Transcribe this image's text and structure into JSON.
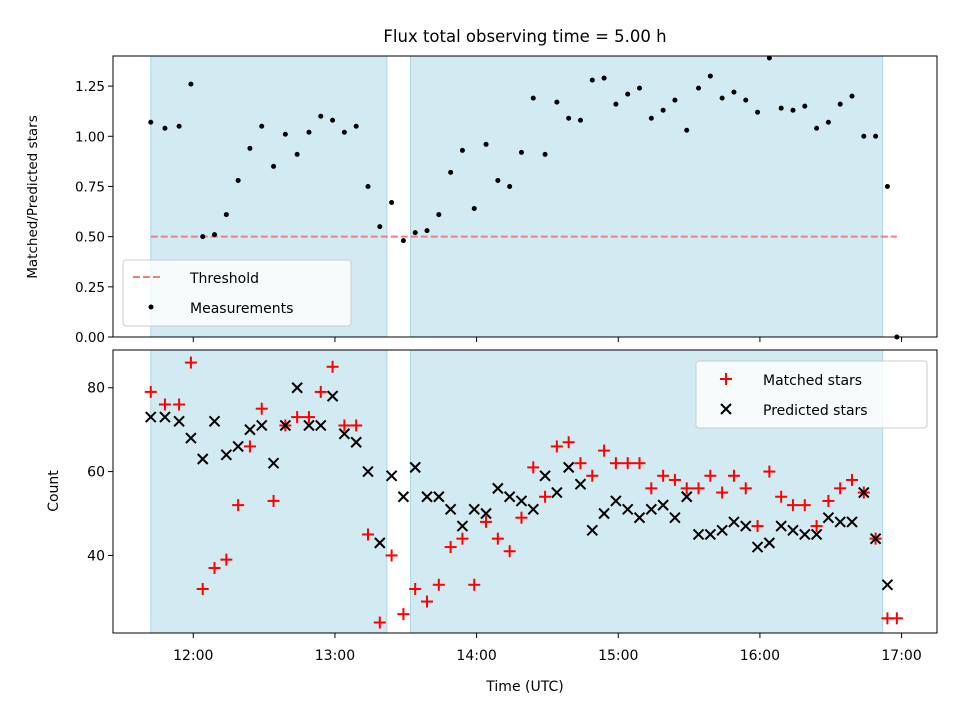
{
  "chart_data": [
    {
      "type": "scatter",
      "title": "Flux total observing time = 5.00 h",
      "xlabel": "",
      "ylabel": "Matched/Predicted stars",
      "xlim": [
        "11:26",
        "17:15"
      ],
      "ylim": [
        0,
        1.4
      ],
      "yticks": [
        0.0,
        0.25,
        0.5,
        0.75,
        1.0,
        1.25
      ],
      "ytick_labels": [
        "0.00",
        "0.25",
        "0.50",
        "0.75",
        "1.00",
        "1.25"
      ],
      "shaded_spans": [
        [
          "11:42",
          "13:22"
        ],
        [
          "13:32",
          "16:52"
        ]
      ],
      "threshold": {
        "name": "Threshold",
        "value": 0.5,
        "from": "11:42",
        "to": "16:58",
        "color": "#f08080"
      },
      "legend": {
        "placement": "lower-left",
        "entries": [
          "Threshold",
          "Measurements"
        ]
      },
      "series": [
        {
          "name": "Measurements",
          "color": "#000000",
          "points": [
            [
              "11:42",
              1.07
            ],
            [
              "11:48",
              1.04
            ],
            [
              "11:54",
              1.05
            ],
            [
              "11:59",
              1.26
            ],
            [
              "12:04",
              0.5
            ],
            [
              "12:09",
              0.51
            ],
            [
              "12:14",
              0.61
            ],
            [
              "12:19",
              0.78
            ],
            [
              "12:24",
              0.94
            ],
            [
              "12:29",
              1.05
            ],
            [
              "12:34",
              0.85
            ],
            [
              "12:39",
              1.01
            ],
            [
              "12:44",
              0.91
            ],
            [
              "12:49",
              1.02
            ],
            [
              "12:54",
              1.1
            ],
            [
              "12:59",
              1.08
            ],
            [
              "13:04",
              1.02
            ],
            [
              "13:09",
              1.05
            ],
            [
              "13:14",
              0.75
            ],
            [
              "13:19",
              0.55
            ],
            [
              "13:24",
              0.67
            ],
            [
              "13:29",
              0.48
            ],
            [
              "13:34",
              0.52
            ],
            [
              "13:39",
              0.53
            ],
            [
              "13:44",
              0.61
            ],
            [
              "13:49",
              0.82
            ],
            [
              "13:54",
              0.93
            ],
            [
              "13:59",
              0.64
            ],
            [
              "14:04",
              0.96
            ],
            [
              "14:09",
              0.78
            ],
            [
              "14:14",
              0.75
            ],
            [
              "14:19",
              0.92
            ],
            [
              "14:24",
              1.19
            ],
            [
              "14:29",
              0.91
            ],
            [
              "14:34",
              1.17
            ],
            [
              "14:39",
              1.09
            ],
            [
              "14:44",
              1.08
            ],
            [
              "14:49",
              1.28
            ],
            [
              "14:54",
              1.29
            ],
            [
              "14:59",
              1.16
            ],
            [
              "15:04",
              1.21
            ],
            [
              "15:09",
              1.24
            ],
            [
              "15:14",
              1.09
            ],
            [
              "15:19",
              1.13
            ],
            [
              "15:24",
              1.18
            ],
            [
              "15:29",
              1.03
            ],
            [
              "15:34",
              1.24
            ],
            [
              "15:39",
              1.3
            ],
            [
              "15:44",
              1.19
            ],
            [
              "15:49",
              1.22
            ],
            [
              "15:54",
              1.18
            ],
            [
              "15:59",
              1.12
            ],
            [
              "16:04",
              1.39
            ],
            [
              "16:09",
              1.14
            ],
            [
              "16:14",
              1.13
            ],
            [
              "16:19",
              1.15
            ],
            [
              "16:24",
              1.04
            ],
            [
              "16:29",
              1.07
            ],
            [
              "16:34",
              1.16
            ],
            [
              "16:39",
              1.2
            ],
            [
              "16:44",
              1.0
            ],
            [
              "16:49",
              1.0
            ],
            [
              "16:54",
              0.75
            ],
            [
              "16:58",
              0.0
            ]
          ]
        }
      ]
    },
    {
      "type": "scatter",
      "title": "",
      "xlabel": "Time (UTC)",
      "ylabel": "Count",
      "xlim": [
        "11:26",
        "17:15"
      ],
      "ylim": [
        21.5,
        89
      ],
      "xticks": [
        "12:00",
        "13:00",
        "14:00",
        "15:00",
        "16:00",
        "17:00"
      ],
      "yticks": [
        40,
        60,
        80
      ],
      "shaded_spans": [
        [
          "11:42",
          "13:22"
        ],
        [
          "13:32",
          "16:52"
        ]
      ],
      "legend": {
        "placement": "top-right",
        "entries": [
          "Matched stars",
          "Predicted stars"
        ]
      },
      "series": [
        {
          "name": "Matched stars",
          "marker": "plus",
          "color": "#ff0000",
          "points": [
            [
              "11:42",
              79
            ],
            [
              "11:48",
              76
            ],
            [
              "11:54",
              76
            ],
            [
              "11:59",
              86
            ],
            [
              "12:04",
              32
            ],
            [
              "12:09",
              37
            ],
            [
              "12:14",
              39
            ],
            [
              "12:19",
              52
            ],
            [
              "12:24",
              66
            ],
            [
              "12:29",
              75
            ],
            [
              "12:34",
              53
            ],
            [
              "12:39",
              71
            ],
            [
              "12:44",
              73
            ],
            [
              "12:49",
              73
            ],
            [
              "12:54",
              79
            ],
            [
              "12:59",
              85
            ],
            [
              "13:04",
              71
            ],
            [
              "13:09",
              71
            ],
            [
              "13:14",
              45
            ],
            [
              "13:19",
              24
            ],
            [
              "13:24",
              40
            ],
            [
              "13:29",
              26
            ],
            [
              "13:34",
              32
            ],
            [
              "13:39",
              29
            ],
            [
              "13:44",
              33
            ],
            [
              "13:49",
              42
            ],
            [
              "13:54",
              44
            ],
            [
              "13:59",
              33
            ],
            [
              "14:04",
              48
            ],
            [
              "14:09",
              44
            ],
            [
              "14:14",
              41
            ],
            [
              "14:19",
              49
            ],
            [
              "14:24",
              61
            ],
            [
              "14:29",
              54
            ],
            [
              "14:34",
              66
            ],
            [
              "14:39",
              67
            ],
            [
              "14:44",
              62
            ],
            [
              "14:49",
              59
            ],
            [
              "14:54",
              65
            ],
            [
              "14:59",
              62
            ],
            [
              "15:04",
              62
            ],
            [
              "15:09",
              62
            ],
            [
              "15:14",
              56
            ],
            [
              "15:19",
              59
            ],
            [
              "15:24",
              58
            ],
            [
              "15:29",
              56
            ],
            [
              "15:34",
              56
            ],
            [
              "15:39",
              59
            ],
            [
              "15:44",
              55
            ],
            [
              "15:49",
              59
            ],
            [
              "15:54",
              56
            ],
            [
              "15:59",
              47
            ],
            [
              "16:04",
              60
            ],
            [
              "16:09",
              54
            ],
            [
              "16:14",
              52
            ],
            [
              "16:19",
              52
            ],
            [
              "16:24",
              47
            ],
            [
              "16:29",
              53
            ],
            [
              "16:34",
              56
            ],
            [
              "16:39",
              58
            ],
            [
              "16:44",
              55
            ],
            [
              "16:49",
              44
            ],
            [
              "16:54",
              25
            ],
            [
              "16:58",
              25
            ]
          ]
        },
        {
          "name": "Predicted stars",
          "marker": "x",
          "color": "#000000",
          "points": [
            [
              "11:42",
              73
            ],
            [
              "11:48",
              73
            ],
            [
              "11:54",
              72
            ],
            [
              "11:59",
              68
            ],
            [
              "12:04",
              63
            ],
            [
              "12:09",
              72
            ],
            [
              "12:14",
              64
            ],
            [
              "12:19",
              66
            ],
            [
              "12:24",
              70
            ],
            [
              "12:29",
              71
            ],
            [
              "12:34",
              62
            ],
            [
              "12:39",
              71
            ],
            [
              "12:44",
              80
            ],
            [
              "12:49",
              71
            ],
            [
              "12:54",
              71
            ],
            [
              "12:59",
              78
            ],
            [
              "13:04",
              69
            ],
            [
              "13:09",
              67
            ],
            [
              "13:14",
              60
            ],
            [
              "13:19",
              43
            ],
            [
              "13:24",
              59
            ],
            [
              "13:29",
              54
            ],
            [
              "13:34",
              61
            ],
            [
              "13:39",
              54
            ],
            [
              "13:44",
              54
            ],
            [
              "13:49",
              51
            ],
            [
              "13:54",
              47
            ],
            [
              "13:59",
              51
            ],
            [
              "14:04",
              50
            ],
            [
              "14:09",
              56
            ],
            [
              "14:14",
              54
            ],
            [
              "14:19",
              53
            ],
            [
              "14:24",
              51
            ],
            [
              "14:29",
              59
            ],
            [
              "14:34",
              55
            ],
            [
              "14:39",
              61
            ],
            [
              "14:44",
              57
            ],
            [
              "14:49",
              46
            ],
            [
              "14:54",
              50
            ],
            [
              "14:59",
              53
            ],
            [
              "15:04",
              51
            ],
            [
              "15:09",
              49
            ],
            [
              "15:14",
              51
            ],
            [
              "15:19",
              52
            ],
            [
              "15:24",
              49
            ],
            [
              "15:29",
              54
            ],
            [
              "15:34",
              45
            ],
            [
              "15:39",
              45
            ],
            [
              "15:44",
              46
            ],
            [
              "15:49",
              48
            ],
            [
              "15:54",
              47
            ],
            [
              "15:59",
              42
            ],
            [
              "16:04",
              43
            ],
            [
              "16:09",
              47
            ],
            [
              "16:14",
              46
            ],
            [
              "16:19",
              45
            ],
            [
              "16:24",
              45
            ],
            [
              "16:29",
              49
            ],
            [
              "16:34",
              48
            ],
            [
              "16:39",
              48
            ],
            [
              "16:44",
              55
            ],
            [
              "16:49",
              44
            ],
            [
              "16:54",
              33
            ]
          ]
        }
      ]
    }
  ],
  "colors": {
    "shade": "#add8e6",
    "axes_edge": "#000000"
  }
}
